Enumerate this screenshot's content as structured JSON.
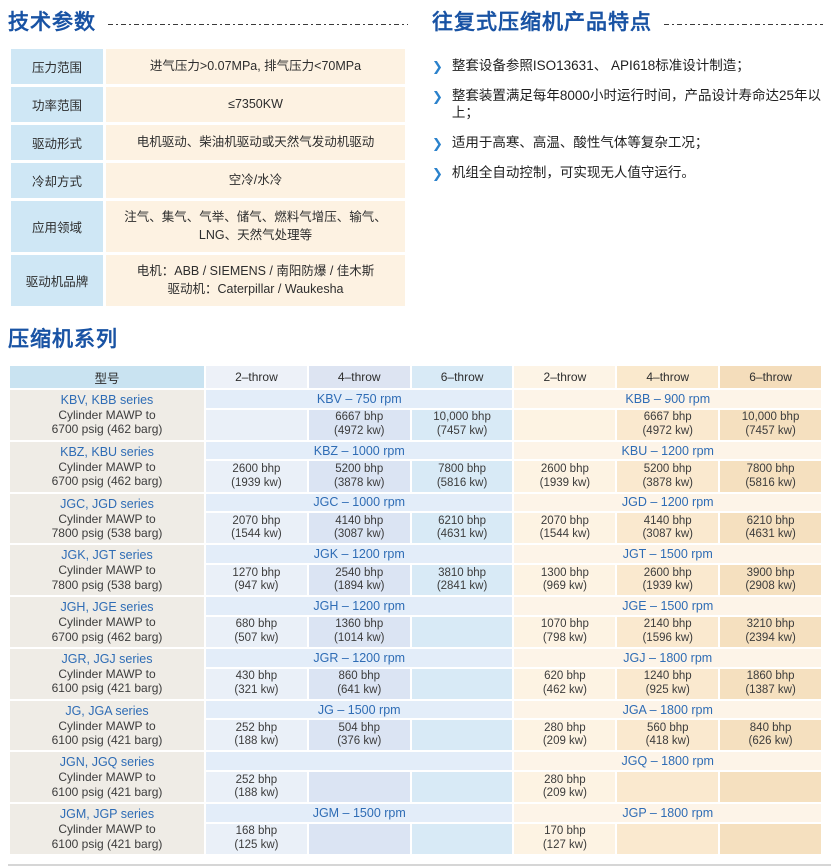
{
  "colors": {
    "title_blue": "#1953a4",
    "accent_blue": "#2e6cb5",
    "bullet_blue": "#2b82cc",
    "label_cell_blue": "#cfe7f5",
    "value_cell_cream": "#fdf2e2",
    "model_cell_gray": "#efece6"
  },
  "tech_params": {
    "title": "技术参数",
    "rows": [
      {
        "label": "压力范围",
        "value": "进气压力>0.07MPa, 排气压力<70MPa"
      },
      {
        "label": "功率范围",
        "value": "≤7350KW"
      },
      {
        "label": "驱动形式",
        "value": "电机驱动、柴油机驱动或天然气发动机驱动"
      },
      {
        "label": "冷却方式",
        "value": "空冷/水冷"
      },
      {
        "label": "应用领域",
        "value": "注气、集气、气举、储气、燃料气增压、输气、\nLNG、天然气处理等"
      },
      {
        "label": "驱动机品牌",
        "value": "电机：ABB / SIEMENS / 南阳防爆 / 佳木斯\n驱动机：Caterpillar / Waukesha"
      }
    ]
  },
  "features": {
    "title": "往复式压缩机产品特点",
    "bullet_glyph": "❯",
    "items": [
      "整套设备参照ISO13631、 API618标准设计制造；",
      "整套装置满足每年8000小时运行时间，产品设计寿命达25年以上；",
      "适用于高寒、高温、酸性气体等复杂工况；",
      "机组全自动控制，可实现无人值守运行。"
    ]
  },
  "series_section": {
    "title": "压缩机系列",
    "header": {
      "model": "型号",
      "cols": [
        "2–throw",
        "4–throw",
        "6–throw",
        "2–throw",
        "4–throw",
        "6–throw"
      ]
    },
    "groups": [
      {
        "series": "KBV, KBB series",
        "mawp": "Cylinder MAWP to\n6700 psig (462 barg)",
        "left": {
          "rpm": "KBV – 750 rpm",
          "values": [
            "",
            "6667 bhp\n(4972 kw)",
            "10,000 bhp\n(7457 kw)"
          ]
        },
        "right": {
          "rpm": "KBB – 900 rpm",
          "values": [
            "",
            "6667 bhp\n(4972 kw)",
            "10,000 bhp\n(7457 kw)"
          ]
        }
      },
      {
        "series": "KBZ, KBU series",
        "mawp": "Cylinder MAWP to\n6700 psig (462 barg)",
        "left": {
          "rpm": "KBZ – 1000 rpm",
          "values": [
            "2600 bhp\n(1939 kw)",
            "5200 bhp\n(3878 kw)",
            "7800 bhp\n(5816 kw)"
          ]
        },
        "right": {
          "rpm": "KBU – 1200 rpm",
          "values": [
            "2600 bhp\n(1939 kw)",
            "5200 bhp\n(3878 kw)",
            "7800 bhp\n(5816 kw)"
          ]
        }
      },
      {
        "series": "JGC, JGD series",
        "mawp": "Cylinder MAWP to\n7800 psig (538 barg)",
        "left": {
          "rpm": "JGC – 1000 rpm",
          "values": [
            "2070 bhp\n(1544 kw)",
            "4140 bhp\n(3087 kw)",
            "6210 bhp\n(4631 kw)"
          ]
        },
        "right": {
          "rpm": "JGD – 1200 rpm",
          "values": [
            "2070 bhp\n(1544 kw)",
            "4140 bhp\n(3087 kw)",
            "6210 bhp\n(4631 kw)"
          ]
        }
      },
      {
        "series": "JGK, JGT series",
        "mawp": "Cylinder MAWP to\n7800 psig (538 barg)",
        "left": {
          "rpm": "JGK – 1200 rpm",
          "values": [
            "1270 bhp\n(947 kw)",
            "2540 bhp\n(1894 kw)",
            "3810 bhp\n(2841 kw)"
          ]
        },
        "right": {
          "rpm": "JGT – 1500 rpm",
          "values": [
            "1300 bhp\n(969 kw)",
            "2600 bhp\n(1939 kw)",
            "3900 bhp\n(2908 kw)"
          ]
        }
      },
      {
        "series": "JGH, JGE series",
        "mawp": "Cylinder MAWP to\n6700 psig (462 barg)",
        "left": {
          "rpm": "JGH – 1200 rpm",
          "values": [
            "680 bhp\n(507 kw)",
            "1360 bhp\n(1014 kw)",
            ""
          ]
        },
        "right": {
          "rpm": "JGE – 1500 rpm",
          "values": [
            "1070 bhp\n(798 kw)",
            "2140 bhp\n(1596 kw)",
            "3210 bhp\n(2394 kw)"
          ]
        }
      },
      {
        "series": "JGR, JGJ series",
        "mawp": "Cylinder MAWP to\n6100 psig (421 barg)",
        "left": {
          "rpm": "JGR – 1200 rpm",
          "values": [
            "430 bhp\n(321 kw)",
            "860 bhp\n(641 kw)",
            ""
          ]
        },
        "right": {
          "rpm": "JGJ – 1800 rpm",
          "values": [
            "620 bhp\n(462 kw)",
            "1240 bhp\n(925 kw)",
            "1860 bhp\n(1387 kw)"
          ]
        }
      },
      {
        "series": "JG, JGA series",
        "mawp": "Cylinder MAWP to\n6100 psig (421 barg)",
        "left": {
          "rpm": "JG – 1500 rpm",
          "values": [
            "252 bhp\n(188 kw)",
            "504 bhp\n(376 kw)",
            ""
          ]
        },
        "right": {
          "rpm": "JGA – 1800 rpm",
          "values": [
            "280 bhp\n(209 kw)",
            "560 bhp\n(418 kw)",
            "840 bhp\n(626 kw)"
          ]
        }
      },
      {
        "series": "JGN, JGQ series",
        "mawp": "Cylinder MAWP to\n6100 psig (421 barg)",
        "left": {
          "rpm": "",
          "values": [
            "252 bhp\n(188 kw)",
            "",
            ""
          ]
        },
        "right": {
          "rpm": "JGQ – 1800 rpm",
          "values": [
            "280 bhp\n(209 kw)",
            "",
            ""
          ]
        }
      },
      {
        "series": "JGM, JGP series",
        "mawp": "Cylinder MAWP to\n6100 psig (421 barg)",
        "left": {
          "rpm": "JGM – 1500 rpm",
          "values": [
            "168 bhp\n(125 kw)",
            "",
            ""
          ]
        },
        "right": {
          "rpm": "JGP – 1800 rpm",
          "values": [
            "170 bhp\n(127 kw)",
            "",
            ""
          ]
        }
      }
    ]
  }
}
